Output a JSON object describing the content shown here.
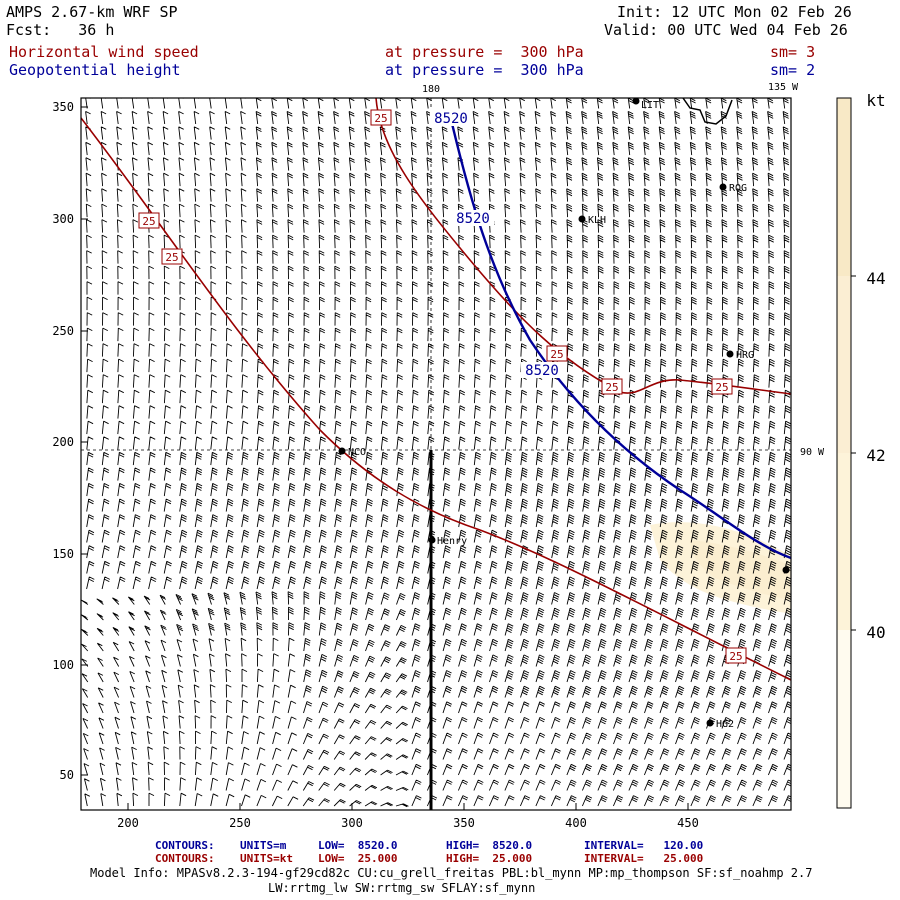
{
  "header": {
    "model_line": "AMPS 2.67-km WRF SP",
    "fcst_line": "Fcst:   36 h",
    "init_line": "Init: 12 UTC Mon 02 Feb 26",
    "valid_line": "Valid: 00 UTC Wed 04 Feb 26",
    "field1_name": "Horizontal wind speed",
    "field1_level": "at pressure =  300 hPa",
    "field1_sm": "sm= 3",
    "field2_name": "Geopotential height",
    "field2_level": "at pressure =  300 hPa",
    "field2_sm": "sm= 2"
  },
  "map": {
    "x_ticks": [
      "200",
      "250",
      "300",
      "350",
      "400",
      "450"
    ],
    "y_ticks": [
      "350",
      "300",
      "250",
      "200",
      "150",
      "100",
      "50"
    ],
    "lon_180": "180",
    "lon_135w": "135 W",
    "lon_90w": "90 W",
    "stations": [
      {
        "name": "ROG"
      },
      {
        "name": "KLH"
      },
      {
        "name": "HRG"
      },
      {
        "name": "NCO"
      },
      {
        "name": "Henry"
      },
      {
        "name": "HG2"
      },
      {
        "name": "LIT"
      }
    ],
    "height_contour_label": "8520",
    "wind_contour_label": "25"
  },
  "colorbar": {
    "unit": "kt",
    "labels": [
      "44",
      "42",
      "40"
    ],
    "colors": {
      "band1": "#fffbef",
      "band2": "#fdf3d9",
      "band3": "#f8e9c6"
    }
  },
  "footer": {
    "c1_contours": "CONTOURS:",
    "c1_units": "UNITS=m",
    "c1_low": "LOW=  8520.0",
    "c1_high": "HIGH=  8520.0",
    "c1_interval": "INTERVAL=   120.00",
    "c2_contours": "CONTOURS:",
    "c2_units": "UNITS=kt",
    "c2_low": "LOW=  25.000",
    "c2_high": "HIGH=  25.000",
    "c2_interval": "INTERVAL=   25.000",
    "model_info": "Model Info: MPASv8.2.3-194-gf29cd82c CU:cu_grell_freitas PBL:bl_mynn MP:mp_thompson SF:sf_noahmp 2.7",
    "model_info2": "LW:rrtmg_lw SW:rrtmg_sw SFLAY:sf_mynn"
  },
  "colors": {
    "height_contour": "#000099",
    "wind_contour": "#990000"
  }
}
